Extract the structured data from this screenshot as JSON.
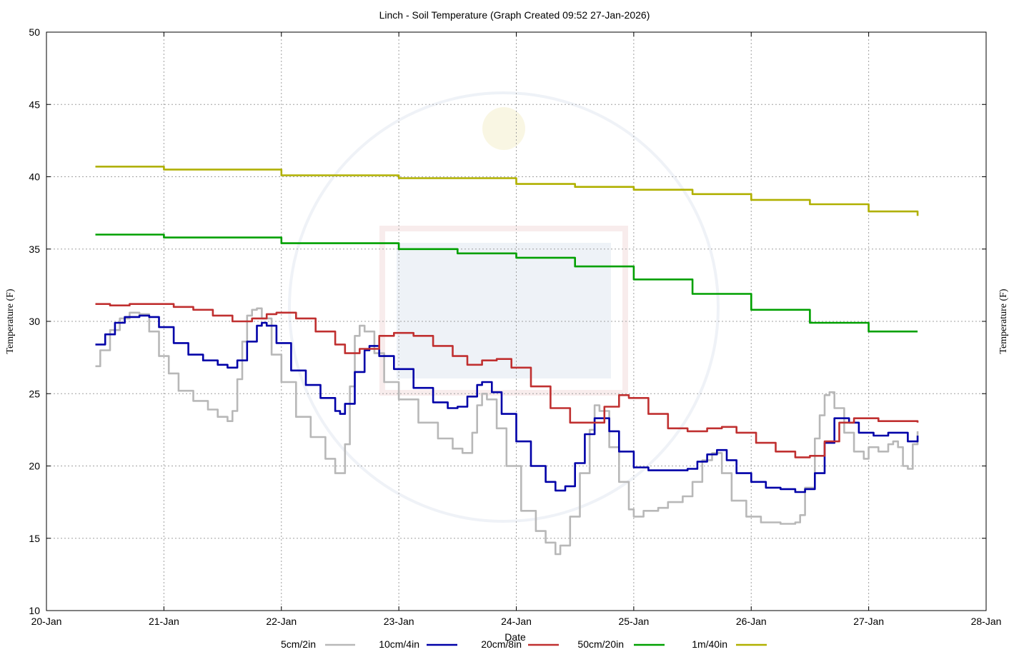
{
  "chart_data": {
    "type": "line",
    "title": "Linch - Soil Temperature (Graph Created 09:52 27-Jan-2026)",
    "xlabel": "Date",
    "ylabel": "Temperature (F)",
    "ylabel_right": "Temperature (F)",
    "x_range": [
      "2026-01-20",
      "2026-01-28"
    ],
    "x_ticks": [
      "20-Jan",
      "21-Jan",
      "22-Jan",
      "23-Jan",
      "24-Jan",
      "25-Jan",
      "26-Jan",
      "27-Jan",
      "28-Jan"
    ],
    "ylim": [
      10,
      50
    ],
    "y_ticks": [
      "10",
      "15",
      "20",
      "25",
      "30",
      "35",
      "40",
      "45",
      "50"
    ],
    "grid": true,
    "legend_position": "bottom",
    "series": [
      {
        "name": "5cm/2in",
        "color": "#b8b8b8",
        "points": [
          [
            "2026-01-20 10:00",
            26.9
          ],
          [
            "2026-01-20 11:00",
            28.0
          ],
          [
            "2026-01-20 13:00",
            29.4
          ],
          [
            "2026-01-20 15:00",
            30.2
          ],
          [
            "2026-01-20 17:00",
            30.6
          ],
          [
            "2026-01-20 19:00",
            30.5
          ],
          [
            "2026-01-20 21:00",
            29.3
          ],
          [
            "2026-01-20 23:00",
            27.6
          ],
          [
            "2026-01-21 01:00",
            26.4
          ],
          [
            "2026-01-21 03:00",
            25.2
          ],
          [
            "2026-01-21 06:00",
            24.5
          ],
          [
            "2026-01-21 09:00",
            23.9
          ],
          [
            "2026-01-21 11:00",
            23.4
          ],
          [
            "2026-01-21 13:00",
            23.1
          ],
          [
            "2026-01-21 14:00",
            23.8
          ],
          [
            "2026-01-21 15:00",
            26.0
          ],
          [
            "2026-01-21 16:00",
            28.6
          ],
          [
            "2026-01-21 17:00",
            30.4
          ],
          [
            "2026-01-21 18:00",
            30.8
          ],
          [
            "2026-01-21 19:00",
            30.9
          ],
          [
            "2026-01-21 20:00",
            30.2
          ],
          [
            "2026-01-21 22:00",
            27.7
          ],
          [
            "2026-01-22 00:00",
            25.8
          ],
          [
            "2026-01-22 03:00",
            23.4
          ],
          [
            "2026-01-22 06:00",
            22.0
          ],
          [
            "2026-01-22 09:00",
            20.5
          ],
          [
            "2026-01-22 11:00",
            19.5
          ],
          [
            "2026-01-22 12:00",
            19.5
          ],
          [
            "2026-01-22 13:00",
            21.5
          ],
          [
            "2026-01-22 14:00",
            25.5
          ],
          [
            "2026-01-22 15:00",
            29.0
          ],
          [
            "2026-01-22 16:00",
            29.7
          ],
          [
            "2026-01-22 17:00",
            29.3
          ],
          [
            "2026-01-22 19:00",
            27.8
          ],
          [
            "2026-01-22 21:00",
            25.8
          ],
          [
            "2026-01-23 00:00",
            24.6
          ],
          [
            "2026-01-23 04:00",
            23.0
          ],
          [
            "2026-01-23 08:00",
            21.9
          ],
          [
            "2026-01-23 11:00",
            21.2
          ],
          [
            "2026-01-23 13:00",
            20.9
          ],
          [
            "2026-01-23 15:00",
            22.3
          ],
          [
            "2026-01-23 16:00",
            24.2
          ],
          [
            "2026-01-23 17:00",
            25.0
          ],
          [
            "2026-01-23 18:00",
            24.6
          ],
          [
            "2026-01-23 20:00",
            22.6
          ],
          [
            "2026-01-23 22:00",
            20.0
          ],
          [
            "2026-01-24 01:00",
            16.9
          ],
          [
            "2026-01-24 04:00",
            15.5
          ],
          [
            "2026-01-24 06:00",
            14.7
          ],
          [
            "2026-01-24 08:00",
            13.9
          ],
          [
            "2026-01-24 09:00",
            14.5
          ],
          [
            "2026-01-24 11:00",
            16.5
          ],
          [
            "2026-01-24 13:00",
            19.5
          ],
          [
            "2026-01-24 15:00",
            22.5
          ],
          [
            "2026-01-24 16:00",
            24.2
          ],
          [
            "2026-01-24 17:00",
            23.8
          ],
          [
            "2026-01-24 19:00",
            21.3
          ],
          [
            "2026-01-24 21:00",
            18.9
          ],
          [
            "2026-01-24 23:00",
            17.0
          ],
          [
            "2026-01-25 00:00",
            16.5
          ],
          [
            "2026-01-25 02:00",
            16.9
          ],
          [
            "2026-01-25 05:00",
            17.1
          ],
          [
            "2026-01-25 07:00",
            17.5
          ],
          [
            "2026-01-25 10:00",
            17.9
          ],
          [
            "2026-01-25 12:00",
            18.9
          ],
          [
            "2026-01-25 14:00",
            20.4
          ],
          [
            "2026-01-25 16:00",
            20.9
          ],
          [
            "2026-01-25 18:00",
            19.5
          ],
          [
            "2026-01-25 20:00",
            17.6
          ],
          [
            "2026-01-25 23:00",
            16.5
          ],
          [
            "2026-01-26 02:00",
            16.1
          ],
          [
            "2026-01-26 06:00",
            16.0
          ],
          [
            "2026-01-26 09:00",
            16.1
          ],
          [
            "2026-01-26 10:00",
            16.6
          ],
          [
            "2026-01-26 11:00",
            18.5
          ],
          [
            "2026-01-26 13:00",
            21.9
          ],
          [
            "2026-01-26 14:00",
            23.5
          ],
          [
            "2026-01-26 15:00",
            24.9
          ],
          [
            "2026-01-26 16:00",
            25.1
          ],
          [
            "2026-01-26 17:00",
            24.0
          ],
          [
            "2026-01-26 19:00",
            22.3
          ],
          [
            "2026-01-26 21:00",
            21.0
          ],
          [
            "2026-01-26 23:00",
            20.5
          ],
          [
            "2026-01-27 00:00",
            21.3
          ],
          [
            "2026-01-27 02:00",
            21.0
          ],
          [
            "2026-01-27 04:00",
            21.5
          ],
          [
            "2026-01-27 05:00",
            21.7
          ],
          [
            "2026-01-27 06:00",
            21.3
          ],
          [
            "2026-01-27 07:00",
            20.0
          ],
          [
            "2026-01-27 08:00",
            19.8
          ],
          [
            "2026-01-27 09:00",
            21.5
          ],
          [
            "2026-01-27 10:00",
            22.4
          ]
        ]
      },
      {
        "name": "10cm/4in",
        "color": "#0000a8",
        "points": [
          [
            "2026-01-20 10:00",
            28.4
          ],
          [
            "2026-01-20 12:00",
            29.1
          ],
          [
            "2026-01-20 14:00",
            29.9
          ],
          [
            "2026-01-20 16:00",
            30.3
          ],
          [
            "2026-01-20 19:00",
            30.4
          ],
          [
            "2026-01-20 21:00",
            30.3
          ],
          [
            "2026-01-20 23:00",
            29.6
          ],
          [
            "2026-01-21 02:00",
            28.5
          ],
          [
            "2026-01-21 05:00",
            27.7
          ],
          [
            "2026-01-21 08:00",
            27.3
          ],
          [
            "2026-01-21 11:00",
            27.0
          ],
          [
            "2026-01-21 13:00",
            26.8
          ],
          [
            "2026-01-21 15:00",
            27.3
          ],
          [
            "2026-01-21 17:00",
            28.6
          ],
          [
            "2026-01-21 19:00",
            29.7
          ],
          [
            "2026-01-21 20:00",
            29.9
          ],
          [
            "2026-01-21 21:00",
            29.7
          ],
          [
            "2026-01-21 23:00",
            28.5
          ],
          [
            "2026-01-22 02:00",
            26.6
          ],
          [
            "2026-01-22 05:00",
            25.6
          ],
          [
            "2026-01-22 08:00",
            24.7
          ],
          [
            "2026-01-22 11:00",
            23.8
          ],
          [
            "2026-01-22 12:00",
            23.6
          ],
          [
            "2026-01-22 13:00",
            24.3
          ],
          [
            "2026-01-22 15:00",
            26.5
          ],
          [
            "2026-01-22 17:00",
            28.0
          ],
          [
            "2026-01-22 18:00",
            28.3
          ],
          [
            "2026-01-22 20:00",
            27.6
          ],
          [
            "2026-01-22 23:00",
            26.7
          ],
          [
            "2026-01-23 03:00",
            25.4
          ],
          [
            "2026-01-23 07:00",
            24.4
          ],
          [
            "2026-01-23 10:00",
            24.0
          ],
          [
            "2026-01-23 12:00",
            24.1
          ],
          [
            "2026-01-23 14:00",
            24.8
          ],
          [
            "2026-01-23 16:00",
            25.6
          ],
          [
            "2026-01-23 17:00",
            25.8
          ],
          [
            "2026-01-23 19:00",
            25.1
          ],
          [
            "2026-01-23 21:00",
            23.6
          ],
          [
            "2026-01-24 00:00",
            21.7
          ],
          [
            "2026-01-24 03:00",
            20.0
          ],
          [
            "2026-01-24 06:00",
            18.9
          ],
          [
            "2026-01-24 08:00",
            18.3
          ],
          [
            "2026-01-24 10:00",
            18.6
          ],
          [
            "2026-01-24 12:00",
            20.2
          ],
          [
            "2026-01-24 14:00",
            22.2
          ],
          [
            "2026-01-24 16:00",
            23.3
          ],
          [
            "2026-01-24 17:00",
            23.3
          ],
          [
            "2026-01-24 19:00",
            22.4
          ],
          [
            "2026-01-24 21:00",
            21.0
          ],
          [
            "2026-01-25 00:00",
            19.9
          ],
          [
            "2026-01-25 03:00",
            19.7
          ],
          [
            "2026-01-25 07:00",
            19.7
          ],
          [
            "2026-01-25 11:00",
            19.8
          ],
          [
            "2026-01-25 13:00",
            20.3
          ],
          [
            "2026-01-25 15:00",
            20.8
          ],
          [
            "2026-01-25 17:00",
            21.1
          ],
          [
            "2026-01-25 19:00",
            20.4
          ],
          [
            "2026-01-25 21:00",
            19.5
          ],
          [
            "2026-01-26 00:00",
            18.9
          ],
          [
            "2026-01-26 03:00",
            18.5
          ],
          [
            "2026-01-26 06:00",
            18.4
          ],
          [
            "2026-01-26 09:00",
            18.2
          ],
          [
            "2026-01-26 11:00",
            18.4
          ],
          [
            "2026-01-26 13:00",
            19.5
          ],
          [
            "2026-01-26 15:00",
            21.6
          ],
          [
            "2026-01-26 17:00",
            23.3
          ],
          [
            "2026-01-26 18:00",
            23.3
          ],
          [
            "2026-01-26 20:00",
            23.0
          ],
          [
            "2026-01-26 22:00",
            22.3
          ],
          [
            "2026-01-27 01:00",
            22.1
          ],
          [
            "2026-01-27 04:00",
            22.3
          ],
          [
            "2026-01-27 06:00",
            22.3
          ],
          [
            "2026-01-27 08:00",
            21.7
          ],
          [
            "2026-01-27 10:00",
            22.1
          ]
        ]
      },
      {
        "name": "20cm/8in",
        "color": "#c03030",
        "points": [
          [
            "2026-01-20 10:00",
            31.2
          ],
          [
            "2026-01-20 13:00",
            31.1
          ],
          [
            "2026-01-20 17:00",
            31.2
          ],
          [
            "2026-01-20 21:00",
            31.2
          ],
          [
            "2026-01-21 02:00",
            31.0
          ],
          [
            "2026-01-21 06:00",
            30.8
          ],
          [
            "2026-01-21 10:00",
            30.4
          ],
          [
            "2026-01-21 14:00",
            30.0
          ],
          [
            "2026-01-21 18:00",
            30.2
          ],
          [
            "2026-01-21 21:00",
            30.5
          ],
          [
            "2026-01-21 23:00",
            30.6
          ],
          [
            "2026-01-22 03:00",
            30.2
          ],
          [
            "2026-01-22 07:00",
            29.3
          ],
          [
            "2026-01-22 11:00",
            28.4
          ],
          [
            "2026-01-22 13:00",
            27.8
          ],
          [
            "2026-01-22 16:00",
            28.1
          ],
          [
            "2026-01-22 20:00",
            29.0
          ],
          [
            "2026-01-22 23:00",
            29.2
          ],
          [
            "2026-01-23 03:00",
            29.0
          ],
          [
            "2026-01-23 07:00",
            28.3
          ],
          [
            "2026-01-23 11:00",
            27.6
          ],
          [
            "2026-01-23 14:00",
            27.0
          ],
          [
            "2026-01-23 17:00",
            27.3
          ],
          [
            "2026-01-23 20:00",
            27.4
          ],
          [
            "2026-01-23 23:00",
            26.8
          ],
          [
            "2026-01-24 03:00",
            25.5
          ],
          [
            "2026-01-24 07:00",
            24.0
          ],
          [
            "2026-01-24 11:00",
            23.0
          ],
          [
            "2026-01-24 14:00",
            23.0
          ],
          [
            "2026-01-24 18:00",
            24.1
          ],
          [
            "2026-01-24 21:00",
            24.9
          ],
          [
            "2026-01-24 23:00",
            24.7
          ],
          [
            "2026-01-25 03:00",
            23.6
          ],
          [
            "2026-01-25 07:00",
            22.6
          ],
          [
            "2026-01-25 11:00",
            22.4
          ],
          [
            "2026-01-25 15:00",
            22.6
          ],
          [
            "2026-01-25 18:00",
            22.7
          ],
          [
            "2026-01-25 21:00",
            22.3
          ],
          [
            "2026-01-26 01:00",
            21.6
          ],
          [
            "2026-01-26 05:00",
            21.0
          ],
          [
            "2026-01-26 09:00",
            20.6
          ],
          [
            "2026-01-26 12:00",
            20.7
          ],
          [
            "2026-01-26 15:00",
            21.7
          ],
          [
            "2026-01-26 18:00",
            23.0
          ],
          [
            "2026-01-26 21:00",
            23.3
          ],
          [
            "2026-01-27 02:00",
            23.1
          ],
          [
            "2026-01-27 06:00",
            23.1
          ],
          [
            "2026-01-27 10:00",
            23.0
          ]
        ]
      },
      {
        "name": "50cm/20in",
        "color": "#00a000",
        "points": [
          [
            "2026-01-20 10:00",
            36.0
          ],
          [
            "2026-01-21 00:00",
            35.8
          ],
          [
            "2026-01-22 00:00",
            35.4
          ],
          [
            "2026-01-23 00:00",
            35.0
          ],
          [
            "2026-01-23 12:00",
            34.7
          ],
          [
            "2026-01-24 00:00",
            34.4
          ],
          [
            "2026-01-24 12:00",
            33.8
          ],
          [
            "2026-01-25 00:00",
            32.9
          ],
          [
            "2026-01-25 12:00",
            31.9
          ],
          [
            "2026-01-26 00:00",
            30.8
          ],
          [
            "2026-01-26 12:00",
            29.9
          ],
          [
            "2026-01-27 00:00",
            29.3
          ],
          [
            "2026-01-27 10:00",
            29.3
          ]
        ]
      },
      {
        "name": "1m/40in",
        "color": "#b0b000",
        "points": [
          [
            "2026-01-20 10:00",
            40.7
          ],
          [
            "2026-01-21 00:00",
            40.5
          ],
          [
            "2026-01-22 00:00",
            40.1
          ],
          [
            "2026-01-23 00:00",
            39.9
          ],
          [
            "2026-01-24 00:00",
            39.5
          ],
          [
            "2026-01-24 12:00",
            39.3
          ],
          [
            "2026-01-25 00:00",
            39.1
          ],
          [
            "2026-01-25 12:00",
            38.8
          ],
          [
            "2026-01-26 00:00",
            38.4
          ],
          [
            "2026-01-26 12:00",
            38.1
          ],
          [
            "2026-01-27 00:00",
            37.6
          ],
          [
            "2026-01-27 10:00",
            37.3
          ]
        ]
      }
    ]
  },
  "colors": {
    "grid": "#a0a0a0",
    "axis": "#000000",
    "watermark": "#e8edf5"
  }
}
